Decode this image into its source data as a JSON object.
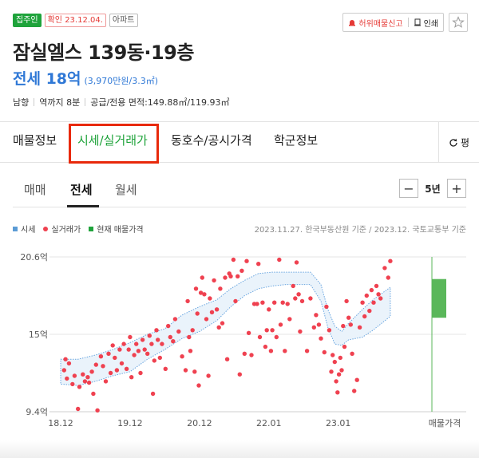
{
  "badges": {
    "resident": "집주인",
    "confirmed": "확인 23.12.04.",
    "type": "아파트"
  },
  "actions": {
    "report_label": "허위매물신고",
    "print_label": "인쇄"
  },
  "title": "잠실엘스 139동·19층",
  "price": {
    "main": "전세 18억",
    "sub": "(3,970만원/3.3㎡)"
  },
  "info": {
    "direction": "남향",
    "station": "역까지 8분",
    "area": "공급/전용 면적:149.88㎡/119.93㎡"
  },
  "tabs": [
    "매물정보",
    "시세/실거래가",
    "동호수/공시가격",
    "학군정보"
  ],
  "refresh_label": "평",
  "sub_tabs": [
    "매매",
    "전세",
    "월세"
  ],
  "period": {
    "label": "5년",
    "minus": "−",
    "plus": "+"
  },
  "legend": {
    "price": "시세",
    "transactions": "실거래가",
    "current": "현재 매물가격"
  },
  "source": "2023.11.27. 한국부동산원 기준 / 2023.12. 국토교통부 기준",
  "colors": {
    "green": "#1fa33b",
    "blue": "#2f78d6",
    "red_dot": "#ef4150",
    "band_fill": "#eaf3fb",
    "band_stroke": "#6aa6e0",
    "current_bar": "#5ab75a",
    "highlight": "#e8290b"
  },
  "chart_data": {
    "type": "scatter",
    "x_unit": "year",
    "xlim": [
      2018.75,
      2023.95
    ],
    "ylim": [
      9.4,
      20.6
    ],
    "y_ticks": [
      {
        "value": 20.6,
        "label": "20.6억"
      },
      {
        "value": 15,
        "label": "15억"
      },
      {
        "value": 9.4,
        "label": "9.4억"
      }
    ],
    "x_ticks": [
      {
        "value": 2018.75,
        "label": "18.12"
      },
      {
        "value": 2019.75,
        "label": "19.12"
      },
      {
        "value": 2020.75,
        "label": "20.12"
      },
      {
        "value": 2021.75,
        "label": "22.01"
      },
      {
        "value": 2022.75,
        "label": "23.01"
      }
    ],
    "current_listing_label": "매물가격",
    "current_listing_range": [
      16.2,
      19.0
    ],
    "market_band": {
      "x": [
        2018.75,
        2019.0,
        2019.25,
        2019.5,
        2019.75,
        2020.0,
        2020.25,
        2020.5,
        2020.75,
        2021.0,
        2021.2,
        2021.4,
        2021.6,
        2021.8,
        2022.0,
        2022.2,
        2022.35,
        2022.5,
        2022.6,
        2022.7,
        2022.8,
        2022.9,
        2023.0,
        2023.1,
        2023.25,
        2023.5
      ],
      "low": [
        11.4,
        11.3,
        11.6,
        12.0,
        12.3,
        13.2,
        13.9,
        14.7,
        15.2,
        16.0,
        17.0,
        17.8,
        18.3,
        18.5,
        18.6,
        18.6,
        18.6,
        17.4,
        15.5,
        14.3,
        14.2,
        14.6,
        14.7,
        14.8,
        15.3,
        16.3
      ],
      "high": [
        13.2,
        13.2,
        13.5,
        13.9,
        14.4,
        15.0,
        15.4,
        16.4,
        17.0,
        17.5,
        18.3,
        18.9,
        19.4,
        19.5,
        19.5,
        19.5,
        19.5,
        18.6,
        16.8,
        15.6,
        15.2,
        15.8,
        16.3,
        16.8,
        17.5,
        18.4
      ]
    },
    "transactions": [
      {
        "x": 2018.8,
        "y": 12.4
      },
      {
        "x": 2018.82,
        "y": 13.2
      },
      {
        "x": 2018.84,
        "y": 11.8
      },
      {
        "x": 2018.87,
        "y": 12.9
      },
      {
        "x": 2018.92,
        "y": 11.4
      },
      {
        "x": 2018.95,
        "y": 12.0
      },
      {
        "x": 2019.0,
        "y": 9.6
      },
      {
        "x": 2019.02,
        "y": 11.2
      },
      {
        "x": 2019.07,
        "y": 12.1
      },
      {
        "x": 2019.1,
        "y": 11.6
      },
      {
        "x": 2019.14,
        "y": 11.9
      },
      {
        "x": 2019.16,
        "y": 11.5
      },
      {
        "x": 2019.2,
        "y": 12.3
      },
      {
        "x": 2019.22,
        "y": 10.7
      },
      {
        "x": 2019.26,
        "y": 12.8
      },
      {
        "x": 2019.28,
        "y": 9.5
      },
      {
        "x": 2019.33,
        "y": 13.4
      },
      {
        "x": 2019.36,
        "y": 12.7
      },
      {
        "x": 2019.4,
        "y": 11.6
      },
      {
        "x": 2019.44,
        "y": 13.6
      },
      {
        "x": 2019.47,
        "y": 12.2
      },
      {
        "x": 2019.5,
        "y": 14.2
      },
      {
        "x": 2019.53,
        "y": 13.3
      },
      {
        "x": 2019.56,
        "y": 12.4
      },
      {
        "x": 2019.6,
        "y": 13.9
      },
      {
        "x": 2019.63,
        "y": 12.9
      },
      {
        "x": 2019.66,
        "y": 14.3
      },
      {
        "x": 2019.7,
        "y": 12.5
      },
      {
        "x": 2019.73,
        "y": 13.9
      },
      {
        "x": 2019.75,
        "y": 14.8
      },
      {
        "x": 2019.77,
        "y": 11.9
      },
      {
        "x": 2019.81,
        "y": 13.5
      },
      {
        "x": 2019.84,
        "y": 14.3
      },
      {
        "x": 2019.87,
        "y": 13.8
      },
      {
        "x": 2019.9,
        "y": 12.2
      },
      {
        "x": 2019.93,
        "y": 14.6
      },
      {
        "x": 2019.96,
        "y": 13.9
      },
      {
        "x": 2020.0,
        "y": 13.6
      },
      {
        "x": 2020.03,
        "y": 14.9
      },
      {
        "x": 2020.06,
        "y": 14.3
      },
      {
        "x": 2020.08,
        "y": 10.7
      },
      {
        "x": 2020.1,
        "y": 13.1
      },
      {
        "x": 2020.13,
        "y": 15.3
      },
      {
        "x": 2020.15,
        "y": 14.6
      },
      {
        "x": 2020.18,
        "y": 13.3
      },
      {
        "x": 2020.21,
        "y": 14.3
      },
      {
        "x": 2020.26,
        "y": 12.5
      },
      {
        "x": 2020.3,
        "y": 15.6
      },
      {
        "x": 2020.33,
        "y": 14.8
      },
      {
        "x": 2020.37,
        "y": 14.5
      },
      {
        "x": 2020.4,
        "y": 16.1
      },
      {
        "x": 2020.45,
        "y": 15.2
      },
      {
        "x": 2020.5,
        "y": 13.4
      },
      {
        "x": 2020.55,
        "y": 12.4
      },
      {
        "x": 2020.58,
        "y": 17.4
      },
      {
        "x": 2020.6,
        "y": 14.8
      },
      {
        "x": 2020.62,
        "y": 13.8
      },
      {
        "x": 2020.65,
        "y": 15.3
      },
      {
        "x": 2020.68,
        "y": 12.3
      },
      {
        "x": 2020.7,
        "y": 18.3
      },
      {
        "x": 2020.72,
        "y": 16.5
      },
      {
        "x": 2020.74,
        "y": 11.3
      },
      {
        "x": 2020.77,
        "y": 18.0
      },
      {
        "x": 2020.79,
        "y": 19.1
      },
      {
        "x": 2020.82,
        "y": 17.9
      },
      {
        "x": 2020.85,
        "y": 16.1
      },
      {
        "x": 2020.88,
        "y": 12.0
      },
      {
        "x": 2020.9,
        "y": 17.6
      },
      {
        "x": 2020.93,
        "y": 16.6
      },
      {
        "x": 2020.96,
        "y": 18.9
      },
      {
        "x": 2021.0,
        "y": 16.8
      },
      {
        "x": 2021.03,
        "y": 15.5
      },
      {
        "x": 2021.05,
        "y": 18.3
      },
      {
        "x": 2021.08,
        "y": 15.8
      },
      {
        "x": 2021.12,
        "y": 19.1
      },
      {
        "x": 2021.15,
        "y": 13.2
      },
      {
        "x": 2021.18,
        "y": 19.4
      },
      {
        "x": 2021.2,
        "y": 19.2
      },
      {
        "x": 2021.24,
        "y": 20.4
      },
      {
        "x": 2021.27,
        "y": 17.4
      },
      {
        "x": 2021.3,
        "y": 19.2
      },
      {
        "x": 2021.33,
        "y": 12.1
      },
      {
        "x": 2021.36,
        "y": 19.6
      },
      {
        "x": 2021.4,
        "y": 13.6
      },
      {
        "x": 2021.43,
        "y": 20.3
      },
      {
        "x": 2021.46,
        "y": 15.1
      },
      {
        "x": 2021.5,
        "y": 13.5
      },
      {
        "x": 2021.54,
        "y": 17.2
      },
      {
        "x": 2021.58,
        "y": 17.2
      },
      {
        "x": 2021.6,
        "y": 20.1
      },
      {
        "x": 2021.62,
        "y": 14.8
      },
      {
        "x": 2021.66,
        "y": 17.3
      },
      {
        "x": 2021.7,
        "y": 14.1
      },
      {
        "x": 2021.72,
        "y": 15.3
      },
      {
        "x": 2021.75,
        "y": 16.8
      },
      {
        "x": 2021.78,
        "y": 13.8
      },
      {
        "x": 2021.8,
        "y": 15.3
      },
      {
        "x": 2021.83,
        "y": 17.3
      },
      {
        "x": 2021.86,
        "y": 14.8
      },
      {
        "x": 2021.9,
        "y": 20.4
      },
      {
        "x": 2021.92,
        "y": 15.7
      },
      {
        "x": 2021.95,
        "y": 17.3
      },
      {
        "x": 2021.98,
        "y": 13.8
      },
      {
        "x": 2022.02,
        "y": 17.2
      },
      {
        "x": 2022.05,
        "y": 16.1
      },
      {
        "x": 2022.1,
        "y": 18.5
      },
      {
        "x": 2022.13,
        "y": 17.6
      },
      {
        "x": 2022.15,
        "y": 20.2
      },
      {
        "x": 2022.18,
        "y": 17.9
      },
      {
        "x": 2022.2,
        "y": 15.2
      },
      {
        "x": 2022.23,
        "y": 17.4
      },
      {
        "x": 2022.3,
        "y": 13.8
      },
      {
        "x": 2022.35,
        "y": 17.6
      },
      {
        "x": 2022.4,
        "y": 15.5
      },
      {
        "x": 2022.43,
        "y": 16.4
      },
      {
        "x": 2022.47,
        "y": 15.7
      },
      {
        "x": 2022.5,
        "y": 14.7
      },
      {
        "x": 2022.55,
        "y": 13.7
      },
      {
        "x": 2022.58,
        "y": 17.0
      },
      {
        "x": 2022.62,
        "y": 15.3
      },
      {
        "x": 2022.65,
        "y": 12.3
      },
      {
        "x": 2022.67,
        "y": 13.5
      },
      {
        "x": 2022.7,
        "y": 13.0
      },
      {
        "x": 2022.72,
        "y": 11.6
      },
      {
        "x": 2022.74,
        "y": 10.8
      },
      {
        "x": 2022.76,
        "y": 12.1
      },
      {
        "x": 2022.78,
        "y": 13.3
      },
      {
        "x": 2022.8,
        "y": 12.4
      },
      {
        "x": 2022.82,
        "y": 15.6
      },
      {
        "x": 2022.84,
        "y": 14.1
      },
      {
        "x": 2022.87,
        "y": 17.4
      },
      {
        "x": 2022.9,
        "y": 16.2
      },
      {
        "x": 2022.93,
        "y": 15.7
      },
      {
        "x": 2022.95,
        "y": 13.6
      },
      {
        "x": 2022.98,
        "y": 10.9
      },
      {
        "x": 2023.02,
        "y": 11.7
      },
      {
        "x": 2023.06,
        "y": 15.5
      },
      {
        "x": 2023.1,
        "y": 17.3
      },
      {
        "x": 2023.13,
        "y": 16.3
      },
      {
        "x": 2023.16,
        "y": 17.8
      },
      {
        "x": 2023.2,
        "y": 16.7
      },
      {
        "x": 2023.23,
        "y": 18.2
      },
      {
        "x": 2023.26,
        "y": 17.3
      },
      {
        "x": 2023.3,
        "y": 18.5
      },
      {
        "x": 2023.33,
        "y": 17.9
      },
      {
        "x": 2023.36,
        "y": 17.6
      },
      {
        "x": 2023.42,
        "y": 19.8
      },
      {
        "x": 2023.47,
        "y": 19.1
      },
      {
        "x": 2023.5,
        "y": 20.3
      }
    ]
  }
}
